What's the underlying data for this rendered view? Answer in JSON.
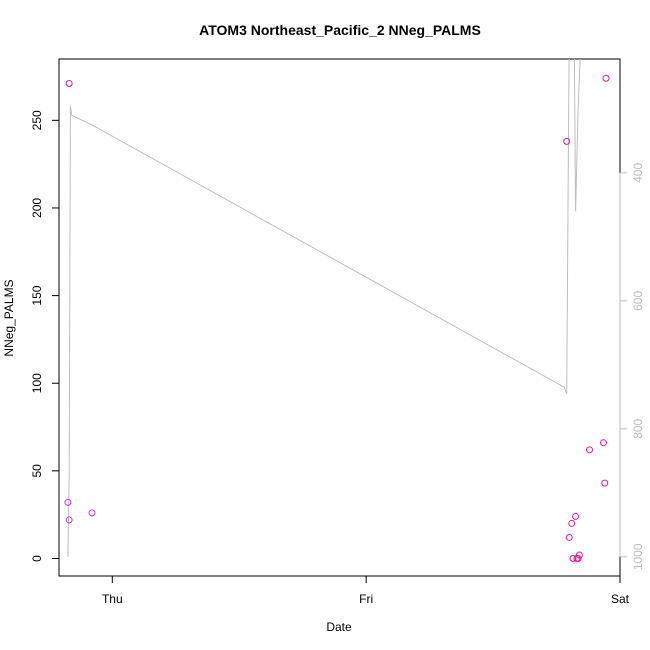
{
  "chart_data": {
    "type": "scatter",
    "title": "ATOM3 Northeast_Pacific_2 NNeg_PALMS",
    "xlabel": "Date",
    "ylabel": "NNeg_PALMS",
    "x_ticks": [
      {
        "label": "Thu",
        "pos": 0
      },
      {
        "label": "Fri",
        "pos": 1
      },
      {
        "label": "Sat",
        "pos": 2
      }
    ],
    "xlim": [
      -0.21,
      2.0
    ],
    "ylim": [
      -10,
      285
    ],
    "y_ticks": [
      0,
      50,
      100,
      150,
      200,
      250
    ],
    "grid": false,
    "legend": "none",
    "colors": {
      "points": "#e6199e",
      "points_alt": "#cc33dd",
      "line": "#bebebe",
      "axis": "#000000",
      "right_axis_text": "#bebebe"
    },
    "right_axis": {
      "label": "",
      "ticks": [
        400,
        600,
        800,
        1000
      ],
      "reversed": true,
      "ylim": [
        1030,
        222
      ]
    },
    "points": [
      {
        "x": -0.17,
        "y": 271
      },
      {
        "x": -0.175,
        "y": 32
      },
      {
        "x": -0.17,
        "y": 22
      },
      {
        "x": -0.08,
        "y": 26
      },
      {
        "x": 1.79,
        "y": 238
      },
      {
        "x": 1.8,
        "y": 12
      },
      {
        "x": 1.81,
        "y": 20
      },
      {
        "x": 1.815,
        "y": 0
      },
      {
        "x": 1.825,
        "y": 24
      },
      {
        "x": 1.83,
        "y": 0
      },
      {
        "x": 1.835,
        "y": 0
      },
      {
        "x": 1.84,
        "y": 2
      },
      {
        "x": 1.88,
        "y": 62
      },
      {
        "x": 1.935,
        "y": 66
      },
      {
        "x": 1.94,
        "y": 43
      },
      {
        "x": 1.945,
        "y": 274
      }
    ],
    "line_series": {
      "name": "",
      "x": [
        -0.175,
        -0.17,
        -0.165,
        -0.16,
        -0.08,
        1.78,
        1.79,
        1.8,
        1.815,
        1.82,
        1.825,
        1.835,
        1.845
      ],
      "y": [
        1000,
        870,
        295,
        310,
        325,
        735,
        745,
        190,
        190,
        200,
        460,
        300,
        200
      ]
    }
  }
}
